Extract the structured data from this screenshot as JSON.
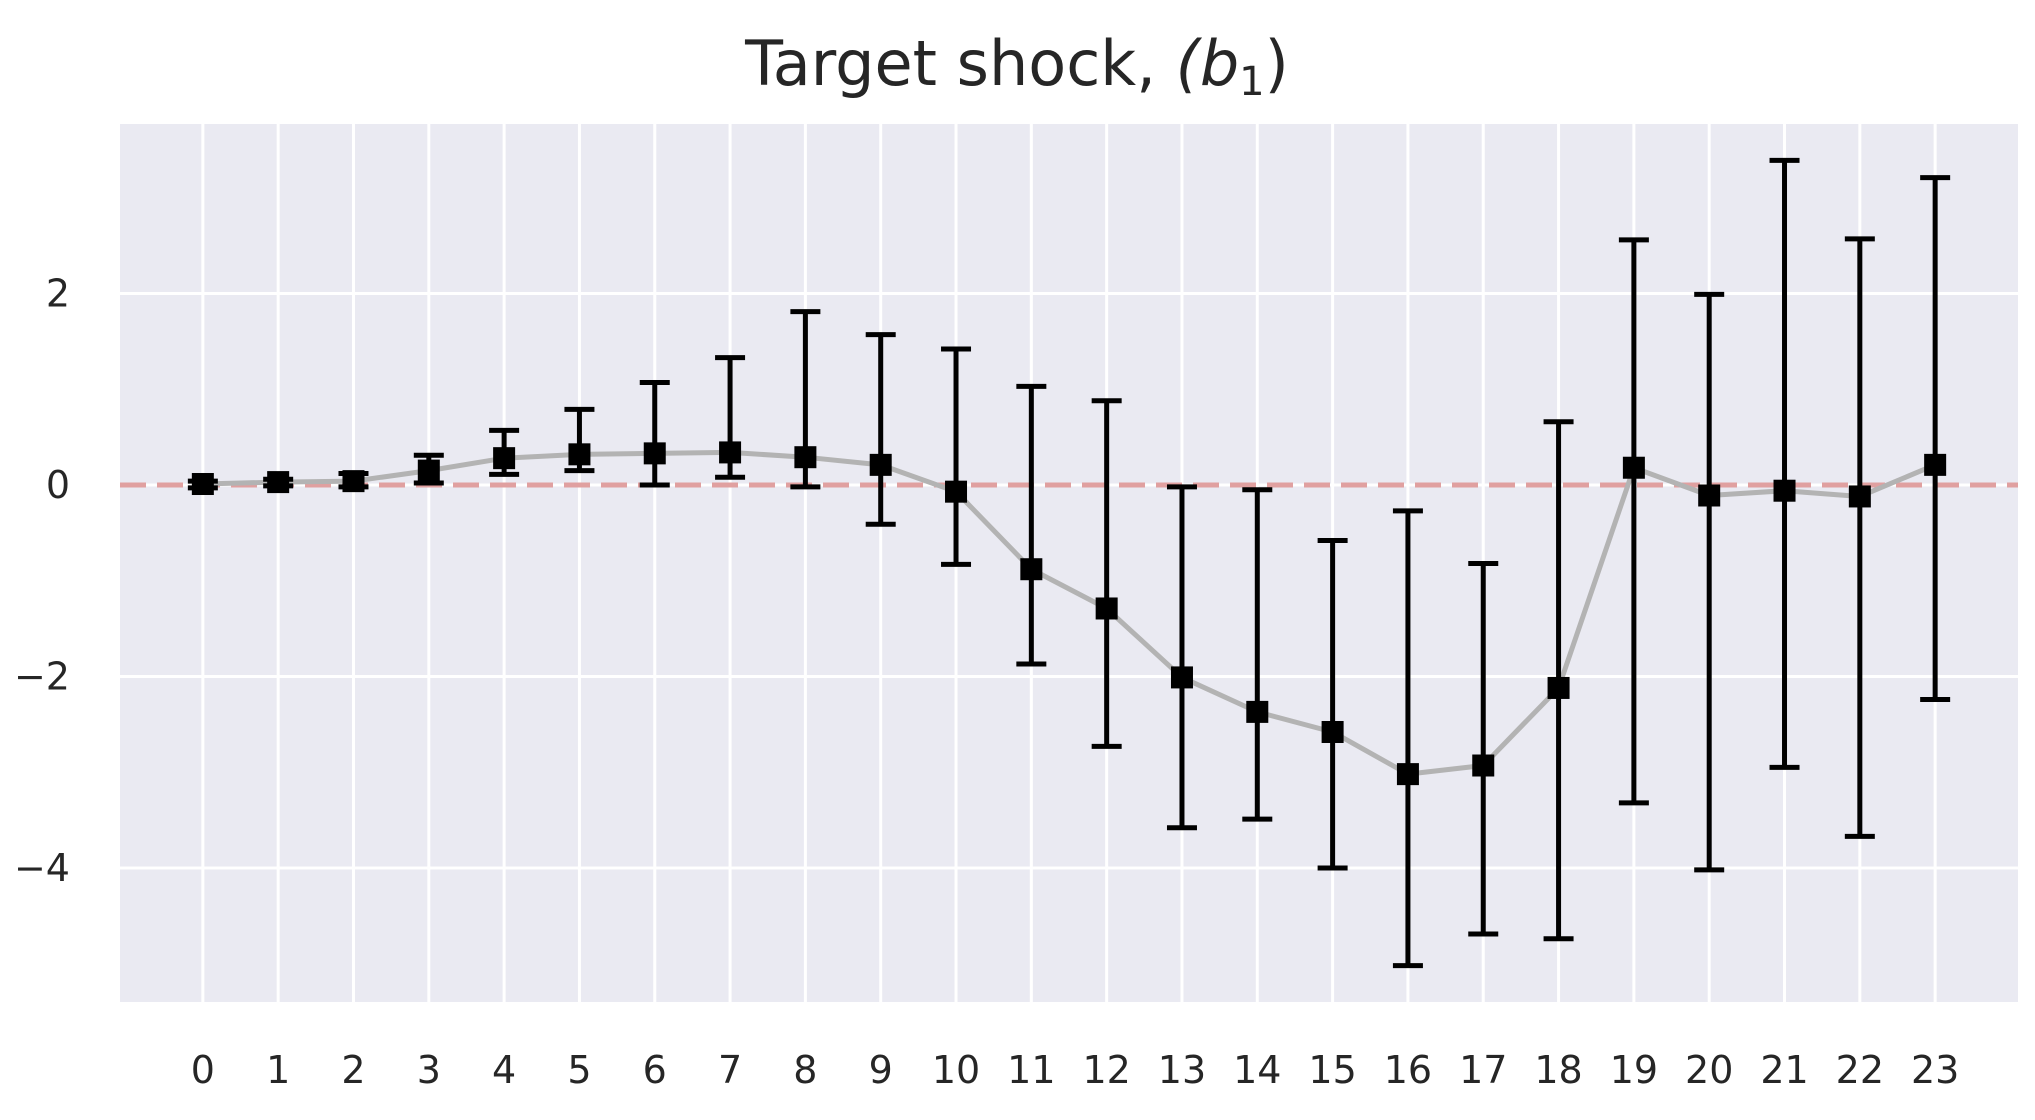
{
  "chart_data": {
    "type": "scatter",
    "title": "Target shock, ",
    "title_math": "(b",
    "title_sub": "1",
    "title_close": ")",
    "xlabel": "",
    "ylabel": "",
    "x": [
      0,
      1,
      2,
      3,
      4,
      5,
      6,
      7,
      8,
      9,
      10,
      11,
      12,
      13,
      14,
      15,
      16,
      17,
      18,
      19,
      20,
      21,
      22,
      23
    ],
    "x_tick_labels": [
      "0",
      "1",
      "2",
      "3",
      "4",
      "5",
      "6",
      "7",
      "8",
      "9",
      "10",
      "11",
      "12",
      "13",
      "14",
      "15",
      "16",
      "17",
      "18",
      "19",
      "20",
      "21",
      "22",
      "23"
    ],
    "xlim": [
      -1.1,
      24.1
    ],
    "ylim": [
      -5.4,
      3.77
    ],
    "y_ticks": [
      2,
      0,
      -2,
      -4
    ],
    "y_tick_labels": [
      "2",
      "0",
      "−2",
      "−4"
    ],
    "grid": true,
    "background": "#eaeaf2",
    "reference_line": {
      "y": 0,
      "style": "dashed",
      "color": "#e0a0a0"
    },
    "series": [
      {
        "line_color": "#b3b3b3",
        "marker_color": "#000000",
        "marker": "square",
        "values": [
          0.01,
          0.03,
          0.04,
          0.15,
          0.28,
          0.32,
          0.33,
          0.34,
          0.29,
          0.21,
          -0.07,
          -0.88,
          -1.29,
          -2.01,
          -2.37,
          -2.58,
          -3.02,
          -2.93,
          -2.12,
          0.18,
          -0.11,
          -0.06,
          -0.12,
          0.21
        ],
        "lower": [
          -0.03,
          -0.01,
          -0.02,
          0.02,
          0.11,
          0.15,
          0.0,
          0.08,
          -0.02,
          -0.41,
          -0.83,
          -1.87,
          -2.73,
          -3.58,
          -3.49,
          -4.0,
          -5.02,
          -4.69,
          -4.74,
          -3.32,
          -4.02,
          -2.95,
          -3.67,
          -2.24
        ],
        "upper": [
          0.04,
          0.06,
          0.12,
          0.31,
          0.57,
          0.79,
          1.07,
          1.33,
          1.81,
          1.57,
          1.42,
          1.03,
          0.88,
          -0.02,
          -0.05,
          -0.58,
          -0.27,
          -0.82,
          0.66,
          2.56,
          1.99,
          3.39,
          2.57,
          3.21
        ]
      }
    ]
  }
}
